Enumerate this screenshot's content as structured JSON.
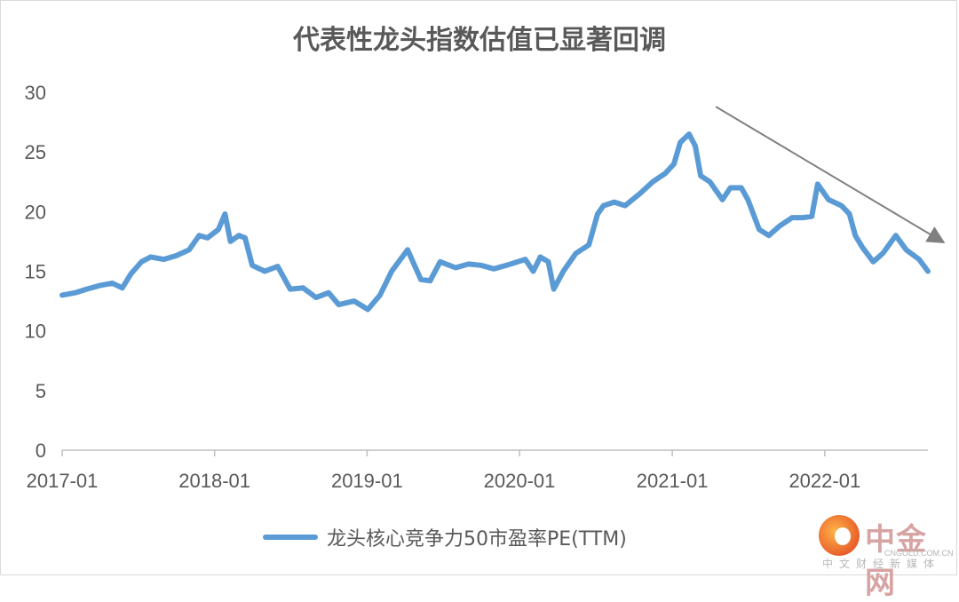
{
  "chart_data": {
    "type": "line",
    "title": "代表性龙头指数估值已显著回调",
    "ylim": [
      0,
      30
    ],
    "yticks": [
      "0",
      "5",
      "10",
      "15",
      "20",
      "25",
      "30"
    ],
    "xticks": [
      "2017-01",
      "2018-01",
      "2019-01",
      "2020-01",
      "2021-01",
      "2022-01"
    ],
    "xlim": [
      "2017-01-01",
      "2022-09-05"
    ],
    "legend_position": "bottom",
    "grid": false,
    "series": [
      {
        "name": "龙头核心竞争力50市盈率PE(TTM)",
        "color": "#5b9bd5",
        "points": [
          [
            "2017-01-01",
            13.0
          ],
          [
            "2017-02-01",
            13.2
          ],
          [
            "2017-03-01",
            13.5
          ],
          [
            "2017-04-01",
            13.8
          ],
          [
            "2017-05-01",
            14.0
          ],
          [
            "2017-05-25",
            13.6
          ],
          [
            "2017-06-15",
            14.8
          ],
          [
            "2017-07-10",
            15.8
          ],
          [
            "2017-08-01",
            16.2
          ],
          [
            "2017-09-01",
            16.0
          ],
          [
            "2017-10-01",
            16.3
          ],
          [
            "2017-11-01",
            16.8
          ],
          [
            "2017-11-25",
            18.0
          ],
          [
            "2017-12-15",
            17.8
          ],
          [
            "2018-01-10",
            18.5
          ],
          [
            "2018-01-26",
            19.8
          ],
          [
            "2018-02-08",
            17.5
          ],
          [
            "2018-02-28",
            18.0
          ],
          [
            "2018-03-15",
            17.8
          ],
          [
            "2018-04-01",
            15.5
          ],
          [
            "2018-05-01",
            15.0
          ],
          [
            "2018-06-01",
            15.4
          ],
          [
            "2018-07-01",
            13.5
          ],
          [
            "2018-08-01",
            13.6
          ],
          [
            "2018-09-01",
            12.8
          ],
          [
            "2018-10-01",
            13.2
          ],
          [
            "2018-10-25",
            12.2
          ],
          [
            "2018-12-01",
            12.5
          ],
          [
            "2019-01-03",
            11.8
          ],
          [
            "2019-02-01",
            13.0
          ],
          [
            "2019-03-01",
            15.0
          ],
          [
            "2019-04-08",
            16.8
          ],
          [
            "2019-05-10",
            14.3
          ],
          [
            "2019-06-01",
            14.2
          ],
          [
            "2019-06-25",
            15.8
          ],
          [
            "2019-08-01",
            15.3
          ],
          [
            "2019-09-01",
            15.6
          ],
          [
            "2019-10-01",
            15.5
          ],
          [
            "2019-11-01",
            15.2
          ],
          [
            "2019-12-01",
            15.5
          ],
          [
            "2020-01-15",
            16.0
          ],
          [
            "2020-02-03",
            15.0
          ],
          [
            "2020-02-20",
            16.2
          ],
          [
            "2020-03-10",
            15.8
          ],
          [
            "2020-03-23",
            13.5
          ],
          [
            "2020-04-15",
            15.0
          ],
          [
            "2020-05-15",
            16.5
          ],
          [
            "2020-06-15",
            17.2
          ],
          [
            "2020-07-06",
            19.8
          ],
          [
            "2020-07-20",
            20.5
          ],
          [
            "2020-08-15",
            20.8
          ],
          [
            "2020-09-10",
            20.5
          ],
          [
            "2020-10-15",
            21.5
          ],
          [
            "2020-11-15",
            22.5
          ],
          [
            "2020-12-15",
            23.2
          ],
          [
            "2021-01-05",
            24.0
          ],
          [
            "2021-01-20",
            25.8
          ],
          [
            "2021-02-10",
            26.5
          ],
          [
            "2021-02-25",
            25.5
          ],
          [
            "2021-03-10",
            23.0
          ],
          [
            "2021-04-01",
            22.5
          ],
          [
            "2021-05-01",
            21.0
          ],
          [
            "2021-05-20",
            22.0
          ],
          [
            "2021-06-15",
            22.0
          ],
          [
            "2021-07-01",
            21.0
          ],
          [
            "2021-07-28",
            18.5
          ],
          [
            "2021-08-20",
            18.0
          ],
          [
            "2021-09-15",
            18.8
          ],
          [
            "2021-10-15",
            19.5
          ],
          [
            "2021-11-10",
            19.5
          ],
          [
            "2021-12-01",
            19.6
          ],
          [
            "2021-12-15",
            22.3
          ],
          [
            "2022-01-10",
            21.0
          ],
          [
            "2022-02-10",
            20.5
          ],
          [
            "2022-03-01",
            19.8
          ],
          [
            "2022-03-15",
            18.0
          ],
          [
            "2022-04-01",
            17.0
          ],
          [
            "2022-04-27",
            15.8
          ],
          [
            "2022-05-20",
            16.5
          ],
          [
            "2022-06-20",
            18.0
          ],
          [
            "2022-07-15",
            16.8
          ],
          [
            "2022-08-15",
            16.0
          ],
          [
            "2022-09-05",
            15.0
          ]
        ]
      }
    ],
    "annotation": "downward-trend-arrow"
  },
  "legend": {
    "label": "龙头核心竞争力50市盈率PE(TTM)"
  },
  "watermark": {
    "name": "中金网",
    "domain": "CNGOLD.COM.CN",
    "tagline": "中文财经新媒体",
    "brand_color": "#e8602c"
  }
}
